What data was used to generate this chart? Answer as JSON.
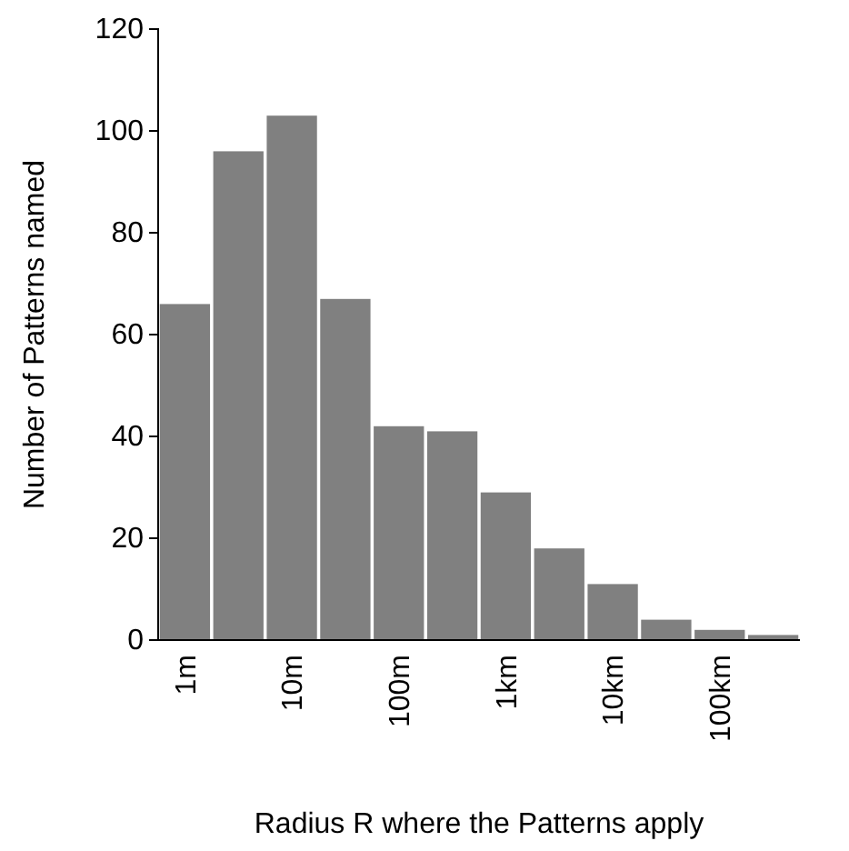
{
  "chart_data": {
    "type": "bar",
    "xlabel": "Radius R where the Patterns apply",
    "ylabel": "Number of Patterns named",
    "categories": [
      "1m",
      null,
      "10m",
      null,
      "100m",
      null,
      "1km",
      null,
      "10km",
      null,
      "100km",
      null
    ],
    "values": [
      66,
      96,
      103,
      67,
      42,
      41,
      29,
      18,
      11,
      4,
      2,
      1
    ],
    "color": "#808080",
    "ylim": [
      0,
      120
    ],
    "yticks": [
      0,
      20,
      40,
      60,
      80,
      100,
      120
    ],
    "grid": false
  }
}
